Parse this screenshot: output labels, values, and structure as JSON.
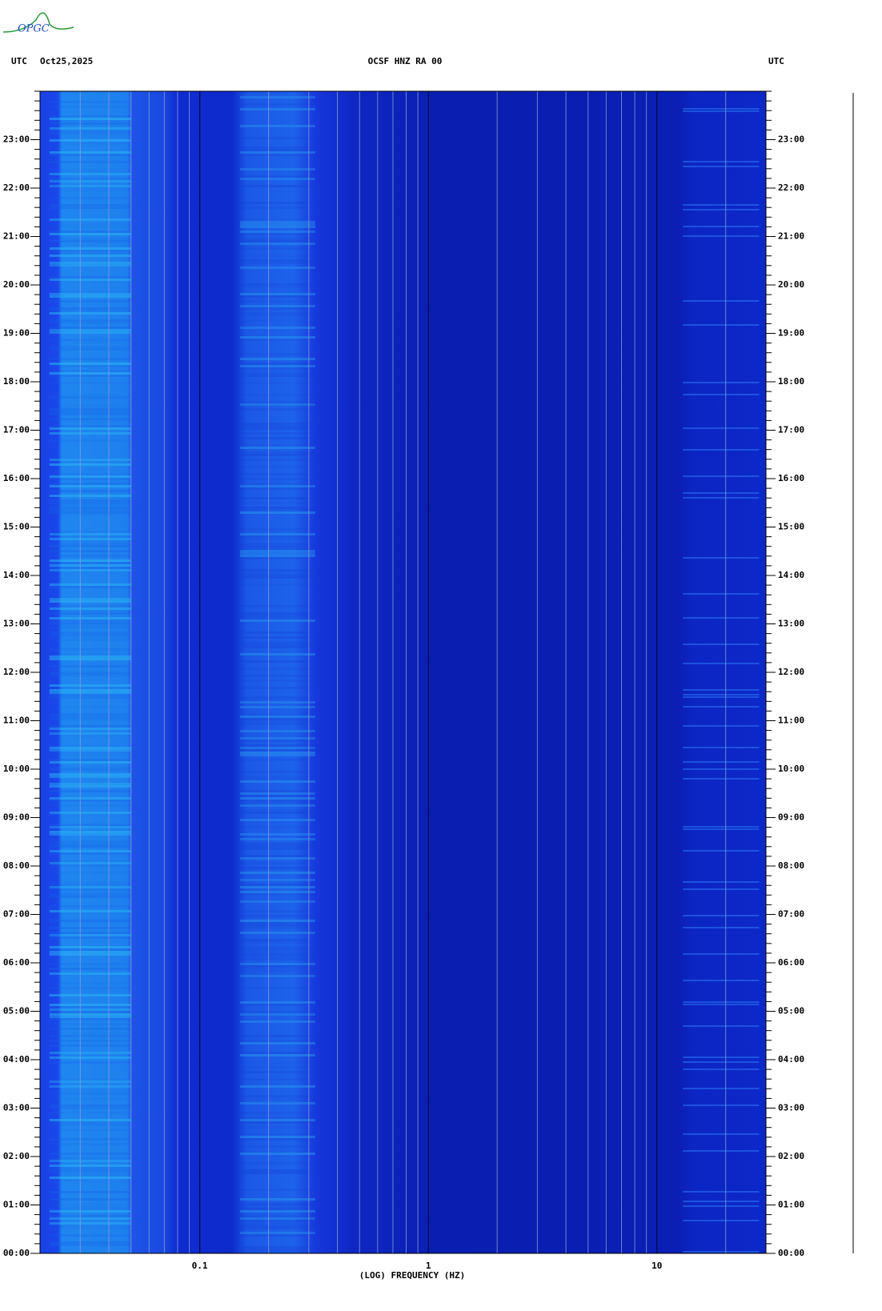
{
  "logo": "OPGC",
  "chart_data": {
    "type": "spectrogram",
    "title": "OCSF HNZ RA 00",
    "left_header": "UTC",
    "date": "Oct25,2025",
    "right_header": "UTC",
    "x_label": "(LOG) FREQUENCY (HZ)",
    "xscale": "log",
    "xlim": [
      0.02,
      30
    ],
    "xticks": [
      0.1,
      1,
      10
    ],
    "ylim": [
      0,
      24
    ],
    "yticks": [
      {
        "value": 0,
        "label": "00:00"
      },
      {
        "value": 1,
        "label": "01:00"
      },
      {
        "value": 2,
        "label": "02:00"
      },
      {
        "value": 3,
        "label": "03:00"
      },
      {
        "value": 4,
        "label": "04:00"
      },
      {
        "value": 5,
        "label": "05:00"
      },
      {
        "value": 6,
        "label": "06:00"
      },
      {
        "value": 7,
        "label": "07:00"
      },
      {
        "value": 8,
        "label": "08:00"
      },
      {
        "value": 9,
        "label": "09:00"
      },
      {
        "value": 10,
        "label": "10:00"
      },
      {
        "value": 11,
        "label": "11:00"
      },
      {
        "value": 12,
        "label": "12:00"
      },
      {
        "value": 13,
        "label": "13:00"
      },
      {
        "value": 14,
        "label": "14:00"
      },
      {
        "value": 15,
        "label": "15:00"
      },
      {
        "value": 16,
        "label": "16:00"
      },
      {
        "value": 17,
        "label": "17:00"
      },
      {
        "value": 18,
        "label": "18:00"
      },
      {
        "value": 19,
        "label": "19:00"
      },
      {
        "value": 20,
        "label": "20:00"
      },
      {
        "value": 21,
        "label": "21:00"
      },
      {
        "value": 22,
        "label": "22:00"
      },
      {
        "value": 23,
        "label": "23:00"
      }
    ],
    "grid": true
  }
}
